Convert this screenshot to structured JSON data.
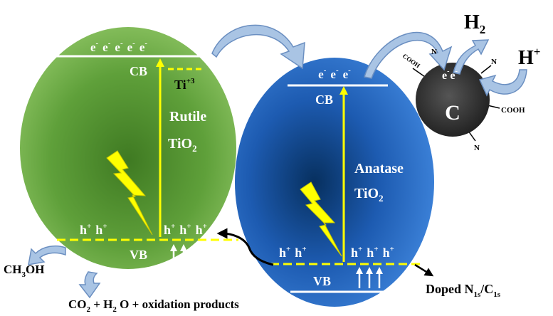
{
  "rutile": {
    "name": "Rutile",
    "formula_base": "TiO",
    "formula_sub": "2",
    "cb_label": "CB",
    "vb_label": "VB",
    "electrons": [
      "e",
      "e",
      "e",
      "e",
      "e"
    ],
    "electron_sup": "-",
    "ti_defect_base": "Ti",
    "ti_defect_sup": "+3",
    "holes_left": [
      "h",
      "h"
    ],
    "holes_right": [
      "h",
      "h",
      "h"
    ],
    "hole_sup": "+",
    "color": "#5a9a36"
  },
  "anatase": {
    "name": "Anatase",
    "formula_base": "TiO",
    "formula_sub": "2",
    "cb_label": "CB",
    "vb_label": "VB",
    "electrons": [
      "e",
      "e",
      "e"
    ],
    "electron_sup": "-",
    "holes_left": [
      "h",
      "h"
    ],
    "holes_right": [
      "h",
      "h",
      "h"
    ],
    "hole_sup": "+",
    "color": "#1f5fb8"
  },
  "carbon": {
    "label": "C",
    "electrons": [
      "e",
      "e"
    ],
    "electron_sup": "-",
    "groups": [
      "COOH",
      "COOH",
      "N",
      "N",
      "N"
    ],
    "color": "#3a3a3a"
  },
  "products": {
    "h2_base": "H",
    "h2_sub": "2",
    "h_plus_base": "H",
    "h_plus_sup": "+",
    "methanol_parts": [
      "CH",
      "3",
      "OH"
    ],
    "oxidation_parts": [
      "CO",
      "2",
      " + H",
      "2",
      " O + oxidation products"
    ],
    "doped_parts": [
      "Doped  N",
      "1s",
      "/C",
      "1s"
    ]
  },
  "colors": {
    "band_line": "#ffff00",
    "arrow_fill": "#a9c4e4",
    "arrow_stroke": "#6b8fc1",
    "text_dark": "#000000",
    "text_light": "#ffffff"
  }
}
